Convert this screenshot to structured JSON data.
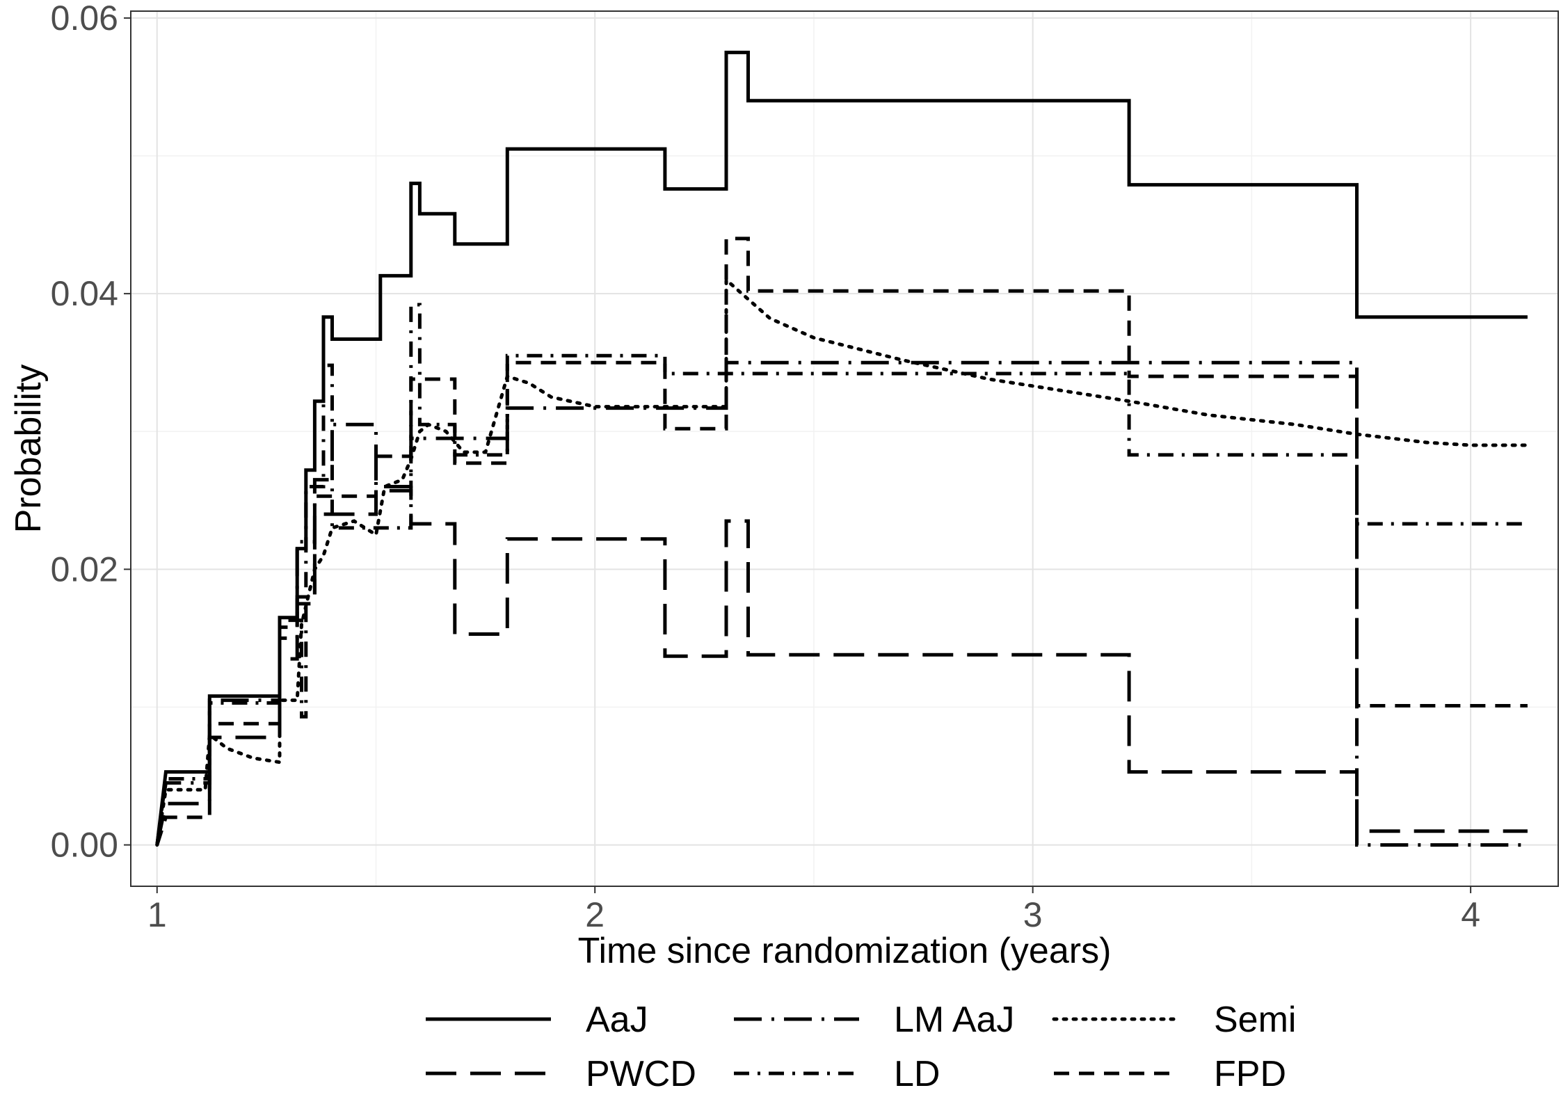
{
  "chart_data": {
    "type": "line",
    "xlabel": "Time since randomization (years)",
    "ylabel": "Probability",
    "xlim": [
      0.94,
      4.2
    ],
    "ylim": [
      -0.003,
      0.0605
    ],
    "x_ticks": [
      1,
      2,
      3,
      4
    ],
    "x_tick_labels": [
      "1",
      "2",
      "3",
      "4"
    ],
    "y_ticks": [
      0.0,
      0.02,
      0.04,
      0.06
    ],
    "y_tick_labels": [
      "0.00",
      "0.02",
      "0.04",
      "0.06"
    ],
    "grid": true,
    "legend_position": "bottom",
    "series": [
      {
        "name": "AaJ",
        "dash": "solid",
        "step": true,
        "points": [
          [
            1.0,
            0.0
          ],
          [
            1.02,
            0.0053
          ],
          [
            1.12,
            0.0053
          ],
          [
            1.12,
            0.0108
          ],
          [
            1.28,
            0.0108
          ],
          [
            1.28,
            0.0165
          ],
          [
            1.32,
            0.0165
          ],
          [
            1.32,
            0.0215
          ],
          [
            1.34,
            0.0215
          ],
          [
            1.34,
            0.0272
          ],
          [
            1.36,
            0.0272
          ],
          [
            1.36,
            0.0322
          ],
          [
            1.38,
            0.0322
          ],
          [
            1.38,
            0.0383
          ],
          [
            1.4,
            0.0383
          ],
          [
            1.4,
            0.0367
          ],
          [
            1.51,
            0.0367
          ],
          [
            1.51,
            0.0413
          ],
          [
            1.58,
            0.0413
          ],
          [
            1.58,
            0.048
          ],
          [
            1.6,
            0.048
          ],
          [
            1.6,
            0.0458
          ],
          [
            1.68,
            0.0458
          ],
          [
            1.68,
            0.0436
          ],
          [
            1.8,
            0.0436
          ],
          [
            1.8,
            0.0505
          ],
          [
            2.16,
            0.0505
          ],
          [
            2.16,
            0.0476
          ],
          [
            2.3,
            0.0476
          ],
          [
            2.3,
            0.0575
          ],
          [
            2.35,
            0.0575
          ],
          [
            2.35,
            0.054
          ],
          [
            3.22,
            0.054
          ],
          [
            3.22,
            0.0479
          ],
          [
            3.74,
            0.0479
          ],
          [
            3.74,
            0.0383
          ],
          [
            4.13,
            0.0383
          ]
        ]
      },
      {
        "name": "LM AaJ",
        "dash": "longdash-dot",
        "step": true,
        "points": [
          [
            1.0,
            0.0
          ],
          [
            1.02,
            0.0045
          ],
          [
            1.12,
            0.0045
          ],
          [
            1.12,
            0.0105
          ],
          [
            1.28,
            0.0105
          ],
          [
            1.28,
            0.015
          ],
          [
            1.32,
            0.015
          ],
          [
            1.32,
            0.022
          ],
          [
            1.36,
            0.022
          ],
          [
            1.36,
            0.0265
          ],
          [
            1.4,
            0.0265
          ],
          [
            1.4,
            0.0305
          ],
          [
            1.5,
            0.0305
          ],
          [
            1.5,
            0.026
          ],
          [
            1.58,
            0.026
          ],
          [
            1.58,
            0.0295
          ],
          [
            1.8,
            0.0295
          ],
          [
            1.8,
            0.0317
          ],
          [
            2.3,
            0.0317
          ],
          [
            2.3,
            0.035
          ],
          [
            3.74,
            0.035
          ],
          [
            3.74,
            0.0
          ],
          [
            4.13,
            0.0
          ]
        ]
      },
      {
        "name": "Semi",
        "dash": "dotted",
        "step": false,
        "points": [
          [
            1.0,
            0.0
          ],
          [
            1.02,
            0.004
          ],
          [
            1.11,
            0.004
          ],
          [
            1.12,
            0.008
          ],
          [
            1.16,
            0.007
          ],
          [
            1.22,
            0.0063
          ],
          [
            1.28,
            0.006
          ],
          [
            1.28,
            0.0105
          ],
          [
            1.32,
            0.0105
          ],
          [
            1.33,
            0.016
          ],
          [
            1.36,
            0.02
          ],
          [
            1.38,
            0.021
          ],
          [
            1.4,
            0.023
          ],
          [
            1.45,
            0.0235
          ],
          [
            1.5,
            0.0225
          ],
          [
            1.52,
            0.026
          ],
          [
            1.56,
            0.0265
          ],
          [
            1.58,
            0.028
          ],
          [
            1.6,
            0.03
          ],
          [
            1.62,
            0.0305
          ],
          [
            1.66,
            0.03
          ],
          [
            1.7,
            0.0285
          ],
          [
            1.75,
            0.0285
          ],
          [
            1.8,
            0.034
          ],
          [
            1.85,
            0.0335
          ],
          [
            1.9,
            0.0325
          ],
          [
            2.0,
            0.0318
          ],
          [
            2.1,
            0.0318
          ],
          [
            2.2,
            0.0318
          ],
          [
            2.3,
            0.0318
          ],
          [
            2.3,
            0.041
          ],
          [
            2.4,
            0.0382
          ],
          [
            2.5,
            0.0368
          ],
          [
            2.7,
            0.0352
          ],
          [
            2.9,
            0.0338
          ],
          [
            3.1,
            0.0328
          ],
          [
            3.22,
            0.0322
          ],
          [
            3.4,
            0.0312
          ],
          [
            3.6,
            0.0305
          ],
          [
            3.74,
            0.0298
          ],
          [
            3.9,
            0.0292
          ],
          [
            4.0,
            0.029
          ],
          [
            4.13,
            0.029
          ]
        ]
      },
      {
        "name": "PWCD",
        "dash": "longdash",
        "step": true,
        "points": [
          [
            1.0,
            0.0
          ],
          [
            1.02,
            0.003
          ],
          [
            1.12,
            0.003
          ],
          [
            1.12,
            0.0078
          ],
          [
            1.28,
            0.0078
          ],
          [
            1.28,
            0.0135
          ],
          [
            1.32,
            0.0135
          ],
          [
            1.32,
            0.0175
          ],
          [
            1.36,
            0.0175
          ],
          [
            1.36,
            0.024
          ],
          [
            1.5,
            0.024
          ],
          [
            1.5,
            0.0257
          ],
          [
            1.58,
            0.0257
          ],
          [
            1.58,
            0.0233
          ],
          [
            1.68,
            0.0233
          ],
          [
            1.68,
            0.0153
          ],
          [
            1.8,
            0.0153
          ],
          [
            1.8,
            0.0222
          ],
          [
            2.16,
            0.0222
          ],
          [
            2.16,
            0.0137
          ],
          [
            2.3,
            0.0137
          ],
          [
            2.3,
            0.0235
          ],
          [
            2.35,
            0.0235
          ],
          [
            2.35,
            0.0138
          ],
          [
            3.22,
            0.0138
          ],
          [
            3.22,
            0.0053
          ],
          [
            3.74,
            0.0053
          ],
          [
            3.74,
            0.001
          ],
          [
            4.13,
            0.001
          ]
        ]
      },
      {
        "name": "LD",
        "dash": "dashdot",
        "step": true,
        "points": [
          [
            1.0,
            0.0
          ],
          [
            1.02,
            0.0048
          ],
          [
            1.12,
            0.0048
          ],
          [
            1.12,
            0.0103
          ],
          [
            1.28,
            0.0103
          ],
          [
            1.28,
            0.0163
          ],
          [
            1.33,
            0.0163
          ],
          [
            1.33,
            0.0093
          ],
          [
            1.34,
            0.0093
          ],
          [
            1.34,
            0.026
          ],
          [
            1.38,
            0.026
          ],
          [
            1.38,
            0.0348
          ],
          [
            1.4,
            0.0348
          ],
          [
            1.4,
            0.023
          ],
          [
            1.58,
            0.023
          ],
          [
            1.58,
            0.0392
          ],
          [
            1.6,
            0.0392
          ],
          [
            1.6,
            0.0305
          ],
          [
            1.68,
            0.0305
          ],
          [
            1.68,
            0.0283
          ],
          [
            1.8,
            0.0283
          ],
          [
            1.8,
            0.0355
          ],
          [
            2.16,
            0.0355
          ],
          [
            2.16,
            0.0342
          ],
          [
            2.3,
            0.0342
          ],
          [
            2.3,
            0.0342
          ],
          [
            3.22,
            0.0342
          ],
          [
            3.22,
            0.0283
          ],
          [
            3.74,
            0.0283
          ],
          [
            3.74,
            0.0233
          ],
          [
            4.13,
            0.0233
          ]
        ]
      },
      {
        "name": "FPD",
        "dash": "dashed",
        "step": true,
        "points": [
          [
            1.0,
            0.0
          ],
          [
            1.02,
            0.002
          ],
          [
            1.12,
            0.002
          ],
          [
            1.12,
            0.0088
          ],
          [
            1.28,
            0.0088
          ],
          [
            1.28,
            0.0158
          ],
          [
            1.32,
            0.0158
          ],
          [
            1.32,
            0.018
          ],
          [
            1.36,
            0.018
          ],
          [
            1.36,
            0.0253
          ],
          [
            1.5,
            0.0253
          ],
          [
            1.5,
            0.0282
          ],
          [
            1.58,
            0.0282
          ],
          [
            1.58,
            0.0338
          ],
          [
            1.68,
            0.0338
          ],
          [
            1.68,
            0.0277
          ],
          [
            1.8,
            0.0277
          ],
          [
            1.8,
            0.035
          ],
          [
            2.16,
            0.035
          ],
          [
            2.16,
            0.0302
          ],
          [
            2.3,
            0.0302
          ],
          [
            2.3,
            0.044
          ],
          [
            2.35,
            0.044
          ],
          [
            2.35,
            0.0402
          ],
          [
            3.22,
            0.0402
          ],
          [
            3.22,
            0.034
          ],
          [
            3.74,
            0.034
          ],
          [
            3.74,
            0.0101
          ],
          [
            4.13,
            0.0101
          ]
        ]
      }
    ]
  }
}
